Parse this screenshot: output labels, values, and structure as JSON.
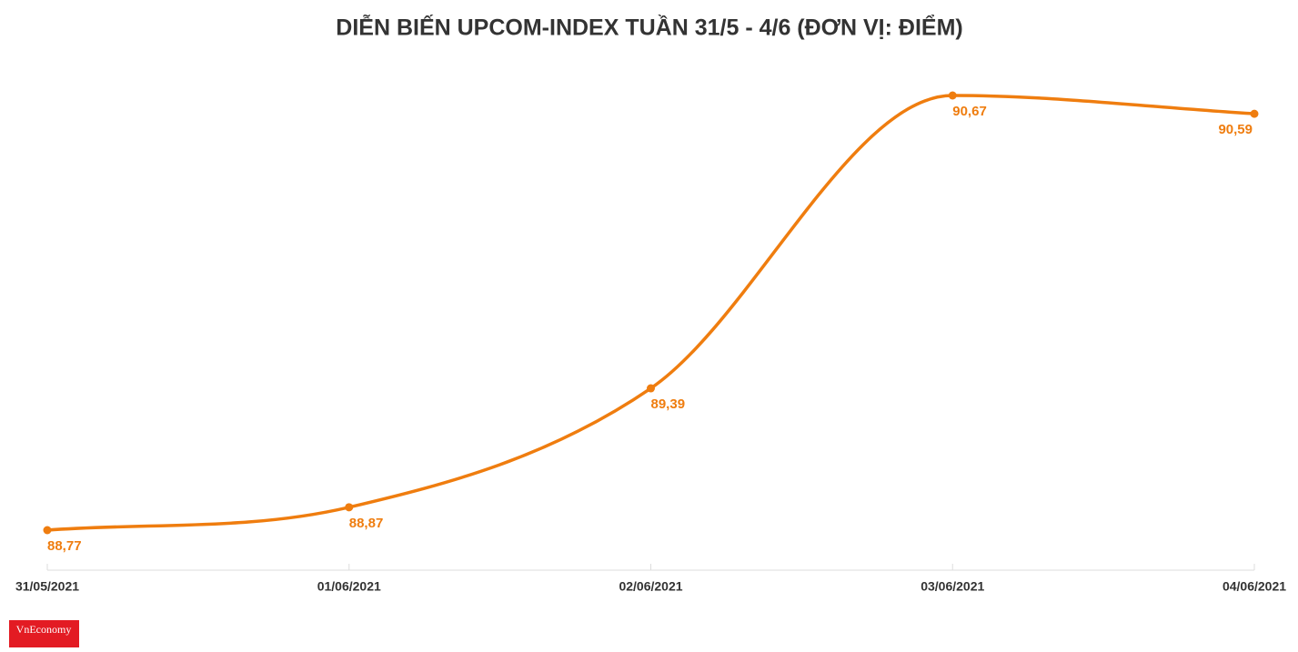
{
  "chart_data": {
    "type": "line",
    "title": "DIỄN BIẾN UPCOM-INDEX TUẦN 31/5 - 4/6 (ĐƠN VỊ: ĐIỂM)",
    "categories": [
      "31/05/2021",
      "01/06/2021",
      "02/06/2021",
      "03/06/2021",
      "04/06/2021"
    ],
    "series": [
      {
        "name": "UPCOM-Index",
        "color": "#ef7d0f",
        "values": [
          88.77,
          88.87,
          89.39,
          90.67,
          90.59
        ],
        "value_labels": [
          "88,77",
          "88,87",
          "89,39",
          "90,67",
          "90,59"
        ]
      }
    ]
  },
  "logo": "VnEconomy"
}
